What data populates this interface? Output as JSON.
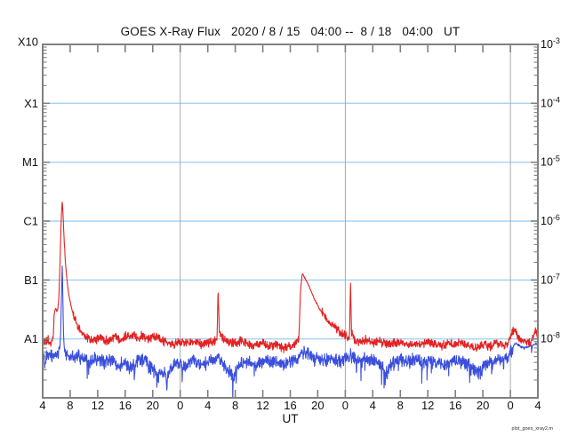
{
  "footer": {
    "watermark": "plot_goes_xray2.m"
  },
  "chart_data": {
    "type": "line",
    "title": "GOES X-Ray Flux   2020 / 8 / 15   04:00 --  8 / 18   04:00   UT",
    "xlabel": "UT",
    "x_axis": {
      "unit": "hours since 2020/8/15 04:00 UT",
      "range_hours": [
        0,
        72
      ],
      "tick_interval_hours": 4,
      "tick_labels": [
        "4",
        "8",
        "12",
        "16",
        "20",
        "0",
        "4",
        "8",
        "12",
        "16",
        "20",
        "0",
        "4",
        "8",
        "12",
        "16",
        "20",
        "0",
        "4"
      ]
    },
    "y_axis": {
      "scale": "log",
      "units": "W/m^2",
      "range": [
        1e-09,
        0.001
      ],
      "left_class_labels": [
        {
          "label": "X10",
          "flux": 0.001
        },
        {
          "label": "X1",
          "flux": 0.0001
        },
        {
          "label": "M1",
          "flux": 1e-05
        },
        {
          "label": "C1",
          "flux": 1e-06
        },
        {
          "label": "B1",
          "flux": 1e-07
        },
        {
          "label": "A1",
          "flux": 1e-08
        }
      ],
      "right_exponent_labels": [
        -3,
        -4,
        -5,
        -6,
        -7,
        -8
      ]
    },
    "gridlines_flux": [
      0.0001,
      1e-05,
      1e-06,
      1e-07,
      1e-08
    ],
    "day_boundary_hours": [
      20,
      44,
      68
    ],
    "legend": "none",
    "colors": {
      "long_wave": "#e32222",
      "short_wave": "#3a4fdc",
      "gridline": "#a5d2f5",
      "axis": "#808080",
      "day_line": "#aaaaaa"
    },
    "series": [
      {
        "name": "xray-long-wavelength",
        "color_key": "long_wave",
        "noise_decades": 0.05,
        "anchors": [
          [
            0,
            1e-08
          ],
          [
            0.4,
            8.5e-09
          ],
          [
            0.8,
            9.5e-09
          ],
          [
            1.2,
            8e-09
          ],
          [
            1.5,
            1e-08
          ],
          [
            1.7,
            2.8e-08
          ],
          [
            1.9,
            3.3e-08
          ],
          [
            2.05,
            2.9e-08
          ],
          [
            2.2,
            3.2e-08
          ],
          [
            2.35,
            5e-08
          ],
          [
            2.5,
            1.6e-07
          ],
          [
            2.65,
            7e-07
          ],
          [
            2.78,
            1.8e-06
          ],
          [
            2.85,
            2.1e-06
          ],
          [
            2.95,
            1.4e-06
          ],
          [
            3.1,
            5.5e-07
          ],
          [
            3.3,
            2e-07
          ],
          [
            3.5,
            1.1e-07
          ],
          [
            3.75,
            6e-08
          ],
          [
            4.05,
            4e-08
          ],
          [
            4.5,
            2.4e-08
          ],
          [
            5.0,
            1.7e-08
          ],
          [
            5.6,
            1.3e-08
          ],
          [
            6.4,
            1.05e-08
          ],
          [
            7.5,
            9.5e-09
          ],
          [
            8.5,
            1.05e-08
          ],
          [
            9.5,
            9e-09
          ],
          [
            10.5,
            1.1e-08
          ],
          [
            11.5,
            1e-08
          ],
          [
            12.3,
            1.15e-08
          ],
          [
            13.2,
            1.2e-08
          ],
          [
            13.8,
            1e-08
          ],
          [
            14.4,
            1.2e-08
          ],
          [
            15.2,
            1e-08
          ],
          [
            16,
            1.1e-08
          ],
          [
            17,
            1e-08
          ],
          [
            18,
            8.5e-09
          ],
          [
            19,
            8e-09
          ],
          [
            20,
            9e-09
          ],
          [
            21,
            8.5e-09
          ],
          [
            22,
            9.5e-09
          ],
          [
            23,
            8e-09
          ],
          [
            24,
            8.5e-09
          ],
          [
            25,
            9e-09
          ],
          [
            25.35,
            9.5e-09
          ],
          [
            25.5,
            7e-08
          ],
          [
            25.68,
            1.3e-08
          ],
          [
            26.2,
            1e-08
          ],
          [
            27,
            9e-09
          ],
          [
            28,
            8.5e-09
          ],
          [
            29,
            9.5e-09
          ],
          [
            30,
            8e-09
          ],
          [
            31,
            7.5e-09
          ],
          [
            32,
            8.5e-09
          ],
          [
            33,
            7.5e-09
          ],
          [
            34,
            8e-09
          ],
          [
            35,
            7e-09
          ],
          [
            36,
            7.5e-09
          ],
          [
            36.8,
            8e-09
          ],
          [
            37.25,
            1e-08
          ],
          [
            37.5,
            7e-08
          ],
          [
            37.75,
            1.3e-07
          ],
          [
            38.0,
            1.15e-07
          ],
          [
            38.4,
            9.5e-08
          ],
          [
            38.9,
            7e-08
          ],
          [
            39.5,
            4.8e-08
          ],
          [
            40.2,
            3.3e-08
          ],
          [
            41.0,
            2.4e-08
          ],
          [
            41.9,
            1.8e-08
          ],
          [
            42.9,
            1.4e-08
          ],
          [
            43.9,
            1.15e-08
          ],
          [
            44.5,
            1.05e-08
          ],
          [
            44.62,
            1.05e-08
          ],
          [
            44.75,
            1e-07
          ],
          [
            44.9,
            1.3e-08
          ],
          [
            45.3,
            1e-08
          ],
          [
            46,
            9e-09
          ],
          [
            47,
            9.5e-09
          ],
          [
            48,
            8.5e-09
          ],
          [
            49,
            9e-09
          ],
          [
            50,
            8e-09
          ],
          [
            51,
            8.5e-09
          ],
          [
            52,
            9e-09
          ],
          [
            53,
            8e-09
          ],
          [
            54,
            8.5e-09
          ],
          [
            55,
            8e-09
          ],
          [
            56,
            9e-09
          ],
          [
            57,
            8e-09
          ],
          [
            58,
            7.5e-09
          ],
          [
            59,
            8.5e-09
          ],
          [
            60,
            8e-09
          ],
          [
            61,
            8.5e-09
          ],
          [
            62,
            7.5e-09
          ],
          [
            63,
            7e-09
          ],
          [
            64,
            8e-09
          ],
          [
            65,
            7.5e-09
          ],
          [
            66,
            8.5e-09
          ],
          [
            67,
            8e-09
          ],
          [
            67.7,
            8.5e-09
          ],
          [
            68.2,
            1.2e-08
          ],
          [
            68.6,
            1.45e-08
          ],
          [
            69.1,
            1.1e-08
          ],
          [
            69.7,
            9e-09
          ],
          [
            70.3,
            9.5e-09
          ],
          [
            70.9,
            8.5e-09
          ],
          [
            71.4,
            1.2e-08
          ],
          [
            71.7,
            1.5e-08
          ],
          [
            71.85,
            1e-08
          ],
          [
            72,
            1.3e-08
          ]
        ]
      },
      {
        "name": "xray-short-wavelength",
        "color_key": "short_wave",
        "noise_decades": 0.075,
        "anchors": [
          [
            0,
            5.5e-09
          ],
          [
            0.5,
            5e-09
          ],
          [
            1,
            5.5e-09
          ],
          [
            1.5,
            5e-09
          ],
          [
            2,
            5.5e-09
          ],
          [
            2.45,
            6e-09
          ],
          [
            2.62,
            1.2e-08
          ],
          [
            2.75,
            7e-08
          ],
          [
            2.85,
            1.9e-07
          ],
          [
            2.93,
            5e-08
          ],
          [
            3.05,
            1e-08
          ],
          [
            3.2,
            6e-09
          ],
          [
            3.5,
            5e-09
          ],
          [
            4.2,
            4.8e-09
          ],
          [
            5,
            5.2e-09
          ],
          [
            6,
            4.6e-09
          ],
          [
            7,
            4.2e-09
          ],
          [
            8,
            4.6e-09
          ],
          [
            9,
            4e-09
          ],
          [
            10,
            4.4e-09
          ],
          [
            11,
            3.6e-09
          ],
          [
            12,
            4e-09
          ],
          [
            12.6,
            3.2e-09
          ],
          [
            13.2,
            3.6e-09
          ],
          [
            14,
            4.6e-09
          ],
          [
            15,
            4.2e-09
          ],
          [
            15.6,
            3.2e-09
          ],
          [
            16.2,
            2.8e-09
          ],
          [
            16.8,
            2.4e-09
          ],
          [
            17.2,
            2.7e-09
          ],
          [
            17.5,
            2.2e-09
          ],
          [
            17.8,
            2.7e-09
          ],
          [
            17.98,
            2.3e-09
          ],
          [
            18.06,
            1.05e-09
          ],
          [
            18.16,
            2.5e-09
          ],
          [
            18.6,
            3e-09
          ],
          [
            19.2,
            3.5e-09
          ],
          [
            20,
            4e-09
          ],
          [
            20.6,
            3.3e-09
          ],
          [
            21.2,
            3.9e-09
          ],
          [
            22,
            4.3e-09
          ],
          [
            23,
            3.7e-09
          ],
          [
            24,
            4.1e-09
          ],
          [
            25,
            4.3e-09
          ],
          [
            25.5,
            4.7e-09
          ],
          [
            26,
            4.1e-09
          ],
          [
            26.6,
            3.3e-09
          ],
          [
            27.2,
            2.8e-09
          ],
          [
            27.7,
            2.5e-09
          ],
          [
            28.3,
            3.1e-09
          ],
          [
            29,
            3.9e-09
          ],
          [
            30,
            4.1e-09
          ],
          [
            31,
            3.7e-09
          ],
          [
            32,
            4.3e-09
          ],
          [
            33,
            3.9e-09
          ],
          [
            34,
            4.1e-09
          ],
          [
            35,
            3.7e-09
          ],
          [
            36,
            4.1e-09
          ],
          [
            37,
            4.5e-09
          ],
          [
            37.6,
            6.2e-09
          ],
          [
            38.2,
            5.6e-09
          ],
          [
            39,
            5.2e-09
          ],
          [
            40,
            4.8e-09
          ],
          [
            41,
            4.4e-09
          ],
          [
            42,
            4.6e-09
          ],
          [
            43,
            4.2e-09
          ],
          [
            44,
            4.6e-09
          ],
          [
            44.75,
            5.2e-09
          ],
          [
            45.2,
            4.8e-09
          ],
          [
            46,
            4.4e-09
          ],
          [
            47,
            4.8e-09
          ],
          [
            48,
            4.4e-09
          ],
          [
            49,
            4e-09
          ],
          [
            49.6,
            3.2e-09
          ],
          [
            50.1,
            2.7e-09
          ],
          [
            50.6,
            3.5e-09
          ],
          [
            51.2,
            4.1e-09
          ],
          [
            52,
            4.5e-09
          ],
          [
            53,
            4.1e-09
          ],
          [
            54,
            4.5e-09
          ],
          [
            55,
            4.1e-09
          ],
          [
            56,
            4.5e-09
          ],
          [
            57,
            4.1e-09
          ],
          [
            58,
            3.7e-09
          ],
          [
            59,
            4.1e-09
          ],
          [
            60,
            4.3e-09
          ],
          [
            61,
            3.9e-09
          ],
          [
            62,
            3.5e-09
          ],
          [
            62.6,
            2.9e-09
          ],
          [
            63.2,
            2.7e-09
          ],
          [
            63.8,
            3.1e-09
          ],
          [
            64.5,
            3.7e-09
          ],
          [
            65.2,
            4.1e-09
          ],
          [
            66,
            4.3e-09
          ],
          [
            67,
            4.5e-09
          ],
          [
            67.8,
            5e-09
          ],
          [
            68.3,
            7.5e-09
          ],
          [
            68.8,
            8.5e-09
          ],
          [
            69.4,
            7.5e-09
          ],
          [
            70,
            7e-09
          ],
          [
            70.8,
            7.5e-09
          ],
          [
            71.5,
            8e-09
          ],
          [
            72,
            8.5e-09
          ]
        ]
      }
    ]
  }
}
